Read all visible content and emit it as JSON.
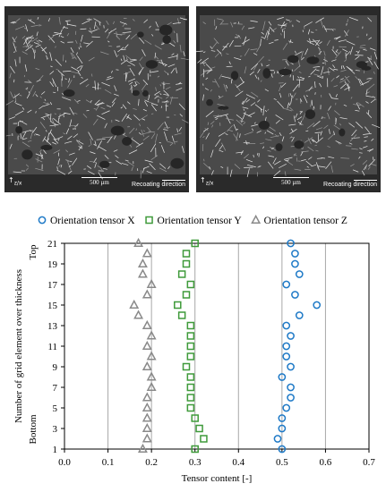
{
  "micrographs": [
    {
      "axes_label": "z/x",
      "scale_label": "500 µm",
      "recoat_word1": "Recoating",
      "recoat_word2": "direction"
    },
    {
      "axes_label": "z/x",
      "scale_label": "500 µm",
      "recoat_word1": "Recoating",
      "recoat_word2": "direction"
    }
  ],
  "chart_data": {
    "type": "scatter",
    "xlabel": "Tensor content [-]",
    "ylabel": "Number of grid element over thickness",
    "y_top_label": "Top",
    "y_bottom_label": "Bottom",
    "xlim": [
      0.0,
      0.7
    ],
    "ylim": [
      1,
      21
    ],
    "x_ticks": [
      "0.0",
      "0.1",
      "0.2",
      "0.3",
      "0.4",
      "0.5",
      "0.6",
      "0.7"
    ],
    "y_ticks": [
      "1",
      "3",
      "5",
      "7",
      "9",
      "11",
      "13",
      "15",
      "17",
      "19",
      "21"
    ],
    "grid": "vertical",
    "legend_position": "top",
    "series": [
      {
        "name": "Orientation tensor X",
        "marker": "circle",
        "color": "#1f7ac7",
        "points": [
          [
            0.5,
            1
          ],
          [
            0.49,
            2
          ],
          [
            0.5,
            3
          ],
          [
            0.5,
            4
          ],
          [
            0.51,
            5
          ],
          [
            0.52,
            6
          ],
          [
            0.52,
            7
          ],
          [
            0.5,
            8
          ],
          [
            0.52,
            9
          ],
          [
            0.51,
            10
          ],
          [
            0.51,
            11
          ],
          [
            0.52,
            12
          ],
          [
            0.51,
            13
          ],
          [
            0.54,
            14
          ],
          [
            0.58,
            15
          ],
          [
            0.53,
            16
          ],
          [
            0.51,
            17
          ],
          [
            0.54,
            18
          ],
          [
            0.53,
            19
          ],
          [
            0.53,
            20
          ],
          [
            0.52,
            21
          ]
        ]
      },
      {
        "name": "Orientation tensor Y",
        "marker": "square",
        "color": "#3f9a3a",
        "points": [
          [
            0.3,
            1
          ],
          [
            0.32,
            2
          ],
          [
            0.31,
            3
          ],
          [
            0.3,
            4
          ],
          [
            0.29,
            5
          ],
          [
            0.29,
            6
          ],
          [
            0.29,
            7
          ],
          [
            0.29,
            8
          ],
          [
            0.28,
            9
          ],
          [
            0.29,
            10
          ],
          [
            0.29,
            11
          ],
          [
            0.29,
            12
          ],
          [
            0.29,
            13
          ],
          [
            0.27,
            14
          ],
          [
            0.26,
            15
          ],
          [
            0.28,
            16
          ],
          [
            0.29,
            17
          ],
          [
            0.27,
            18
          ],
          [
            0.28,
            19
          ],
          [
            0.28,
            20
          ],
          [
            0.3,
            21
          ]
        ]
      },
      {
        "name": "Orientation tensor Z",
        "marker": "triangle",
        "color": "#8a8a8a",
        "points": [
          [
            0.18,
            1
          ],
          [
            0.19,
            2
          ],
          [
            0.19,
            3
          ],
          [
            0.19,
            4
          ],
          [
            0.19,
            5
          ],
          [
            0.19,
            6
          ],
          [
            0.2,
            7
          ],
          [
            0.2,
            8
          ],
          [
            0.19,
            9
          ],
          [
            0.2,
            10
          ],
          [
            0.19,
            11
          ],
          [
            0.2,
            12
          ],
          [
            0.19,
            13
          ],
          [
            0.17,
            14
          ],
          [
            0.16,
            15
          ],
          [
            0.19,
            16
          ],
          [
            0.2,
            17
          ],
          [
            0.18,
            18
          ],
          [
            0.18,
            19
          ],
          [
            0.19,
            20
          ],
          [
            0.17,
            21
          ]
        ]
      }
    ]
  }
}
